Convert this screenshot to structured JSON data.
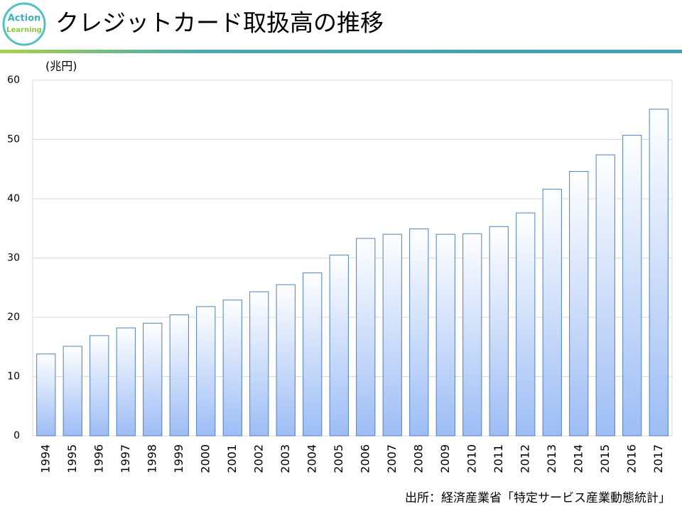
{
  "logo": {
    "lines": [
      "Action",
      "Learning"
    ]
  },
  "chart_data": {
    "type": "bar",
    "title": "クレジットカード取扱高の推移",
    "unit_label": "(兆円)",
    "source": "出所：経済産業省「特定サービス産業動態統計」",
    "categories": [
      "1994",
      "1995",
      "1996",
      "1997",
      "1998",
      "1999",
      "2000",
      "2001",
      "2002",
      "2003",
      "2004",
      "2005",
      "2006",
      "2007",
      "2008",
      "2009",
      "2010",
      "2011",
      "2012",
      "2013",
      "2014",
      "2015",
      "2016",
      "2017"
    ],
    "values": [
      13.8,
      15.1,
      16.9,
      18.2,
      19.0,
      20.4,
      21.8,
      22.9,
      24.3,
      25.5,
      27.5,
      30.5,
      33.3,
      34.0,
      34.9,
      34.0,
      34.1,
      35.3,
      37.6,
      41.6,
      44.6,
      47.4,
      50.7,
      55.1
    ],
    "color": "#4f81bd",
    "ylim": [
      0,
      60
    ],
    "yticks": [
      0,
      10,
      20,
      30,
      40,
      50,
      60
    ],
    "grid": true
  }
}
